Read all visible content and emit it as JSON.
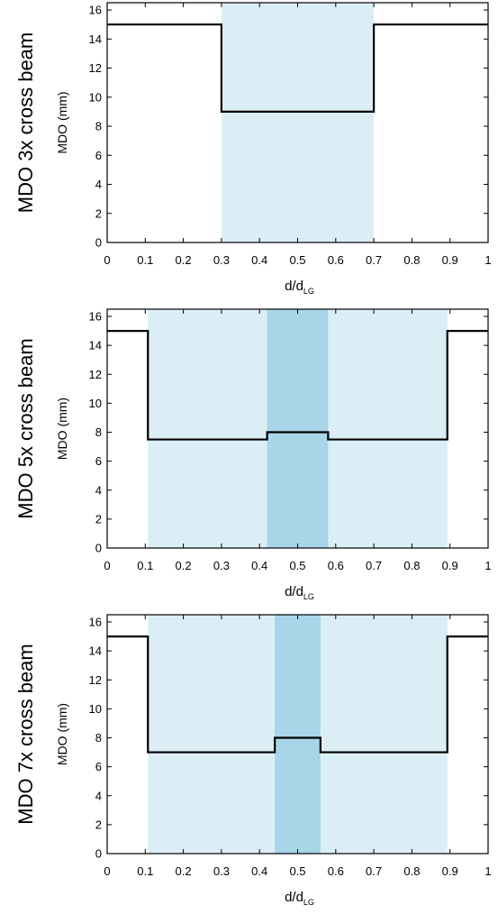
{
  "chart_data": [
    {
      "type": "line",
      "side_title": "MDO 3x cross beam",
      "ylabel": "MDO (mm)",
      "xlabel_main": "d/d",
      "xlabel_sub": "LG",
      "xlim": [
        0,
        1
      ],
      "ylim": [
        0,
        16.5
      ],
      "xticks": [
        "0",
        "0.1",
        "0.2",
        "0.3",
        "0.4",
        "0.5",
        "0.6",
        "0.7",
        "0.8",
        "0.9",
        "1"
      ],
      "yticks": [
        "0",
        "2",
        "4",
        "6",
        "8",
        "10",
        "12",
        "14",
        "16"
      ],
      "regions": [
        {
          "x0": 0.3,
          "x1": 0.7,
          "color": "#dbeef5"
        }
      ],
      "series": [
        {
          "x": [
            0,
            0.3,
            0.3,
            0.7,
            0.7,
            1.0
          ],
          "y": [
            15,
            15,
            9,
            9,
            15,
            15
          ]
        }
      ]
    },
    {
      "type": "line",
      "side_title": "MDO 5x cross beam",
      "ylabel": "MDO (mm)",
      "xlabel_main": "d/d",
      "xlabel_sub": "LG",
      "xlim": [
        0,
        1
      ],
      "ylim": [
        0,
        16.5
      ],
      "xticks": [
        "0",
        "0.1",
        "0.2",
        "0.3",
        "0.4",
        "0.5",
        "0.6",
        "0.7",
        "0.8",
        "0.9",
        "1"
      ],
      "yticks": [
        "0",
        "2",
        "4",
        "6",
        "8",
        "10",
        "12",
        "14",
        "16"
      ],
      "regions": [
        {
          "x0": 0.107,
          "x1": 0.893,
          "color": "#dbeef5"
        },
        {
          "x0": 0.42,
          "x1": 0.58,
          "color": "#a8d5e8"
        }
      ],
      "series": [
        {
          "x": [
            0,
            0.107,
            0.107,
            0.42,
            0.42,
            0.58,
            0.58,
            0.893,
            0.893,
            1.0
          ],
          "y": [
            15,
            15,
            7.5,
            7.5,
            8,
            8,
            7.5,
            7.5,
            15,
            15
          ]
        }
      ]
    },
    {
      "type": "line",
      "side_title": "MDO 7x cross beam",
      "ylabel": "MDO (mm)",
      "xlabel_main": "d/d",
      "xlabel_sub": "LG",
      "xlim": [
        0,
        1
      ],
      "ylim": [
        0,
        16.5
      ],
      "xticks": [
        "0",
        "0.1",
        "0.2",
        "0.3",
        "0.4",
        "0.5",
        "0.6",
        "0.7",
        "0.8",
        "0.9",
        "1"
      ],
      "yticks": [
        "0",
        "2",
        "4",
        "6",
        "8",
        "10",
        "12",
        "14",
        "16"
      ],
      "regions": [
        {
          "x0": 0.107,
          "x1": 0.893,
          "color": "#dbeef5"
        },
        {
          "x0": 0.44,
          "x1": 0.56,
          "color": "#a8d5e8"
        }
      ],
      "series": [
        {
          "x": [
            0,
            0.107,
            0.107,
            0.44,
            0.44,
            0.56,
            0.56,
            0.893,
            0.893,
            1.0
          ],
          "y": [
            15,
            15,
            7,
            7,
            8,
            8,
            7,
            7,
            15,
            15
          ]
        }
      ]
    }
  ]
}
